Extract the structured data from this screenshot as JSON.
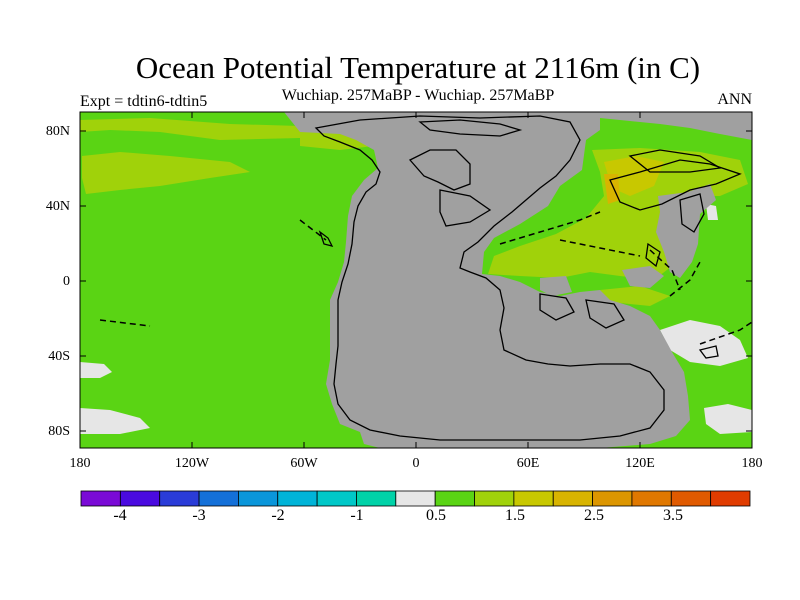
{
  "header": {
    "title": "Ocean Potential Temperature at 2116m (in C)",
    "subtitle": "Wuchiap. 257MaBP - Wuchiap. 257MaBP",
    "left_label": "Expt = tdtin6-tdtin5",
    "right_label": "ANN"
  },
  "axes": {
    "y_ticks": [
      "80N",
      "40N",
      "0",
      "40S",
      "80S"
    ],
    "x_ticks": [
      "180",
      "120W",
      "60W",
      "0",
      "60E",
      "120E",
      "180"
    ]
  },
  "colorbar": {
    "colors": [
      "#7a0ad6",
      "#4a0ae0",
      "#2a3cd8",
      "#1470d8",
      "#0a96da",
      "#00b4d8",
      "#00c8c8",
      "#00d2a8",
      "#e6e6e6",
      "#5ad414",
      "#a0d20a",
      "#c8c800",
      "#d8b400",
      "#dc9600",
      "#e07800",
      "#e05a00",
      "#e03c00"
    ],
    "tick_labels": [
      "-4",
      "-3",
      "-2",
      "-1",
      "0.5",
      "1.5",
      "2.5",
      "3.5"
    ]
  },
  "legend_colors": {
    "ocean_base": "#5ad414",
    "land": "#a0a0a0",
    "warm_anomaly": "#a0d20a",
    "warmer_anomaly": "#c8c800",
    "near_zero": "#e6e6e6"
  }
}
